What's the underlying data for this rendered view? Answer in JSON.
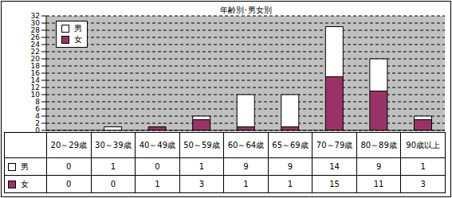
{
  "chart_data": {
    "type": "bar",
    "title": "年齢別･男女別",
    "categories": [
      "20～29歳",
      "30～39歳",
      "40～49歳",
      "50～59歳",
      "60～64歳",
      "65～69歳",
      "70～79歳",
      "80～89歳",
      "90歳以上"
    ],
    "series": [
      {
        "name": "男",
        "color": "#ffffff",
        "values": [
          0,
          1,
          0,
          1,
          9,
          9,
          14,
          9,
          1
        ]
      },
      {
        "name": "女",
        "color": "#993366",
        "values": [
          0,
          0,
          1,
          3,
          1,
          1,
          15,
          11,
          3
        ]
      }
    ],
    "ylim": [
      0,
      32
    ],
    "yticks": [
      0,
      2,
      4,
      6,
      8,
      10,
      12,
      14,
      16,
      18,
      20,
      22,
      24,
      26,
      28,
      30,
      32
    ],
    "grid": true,
    "stacked": true,
    "legend": "upper left"
  }
}
